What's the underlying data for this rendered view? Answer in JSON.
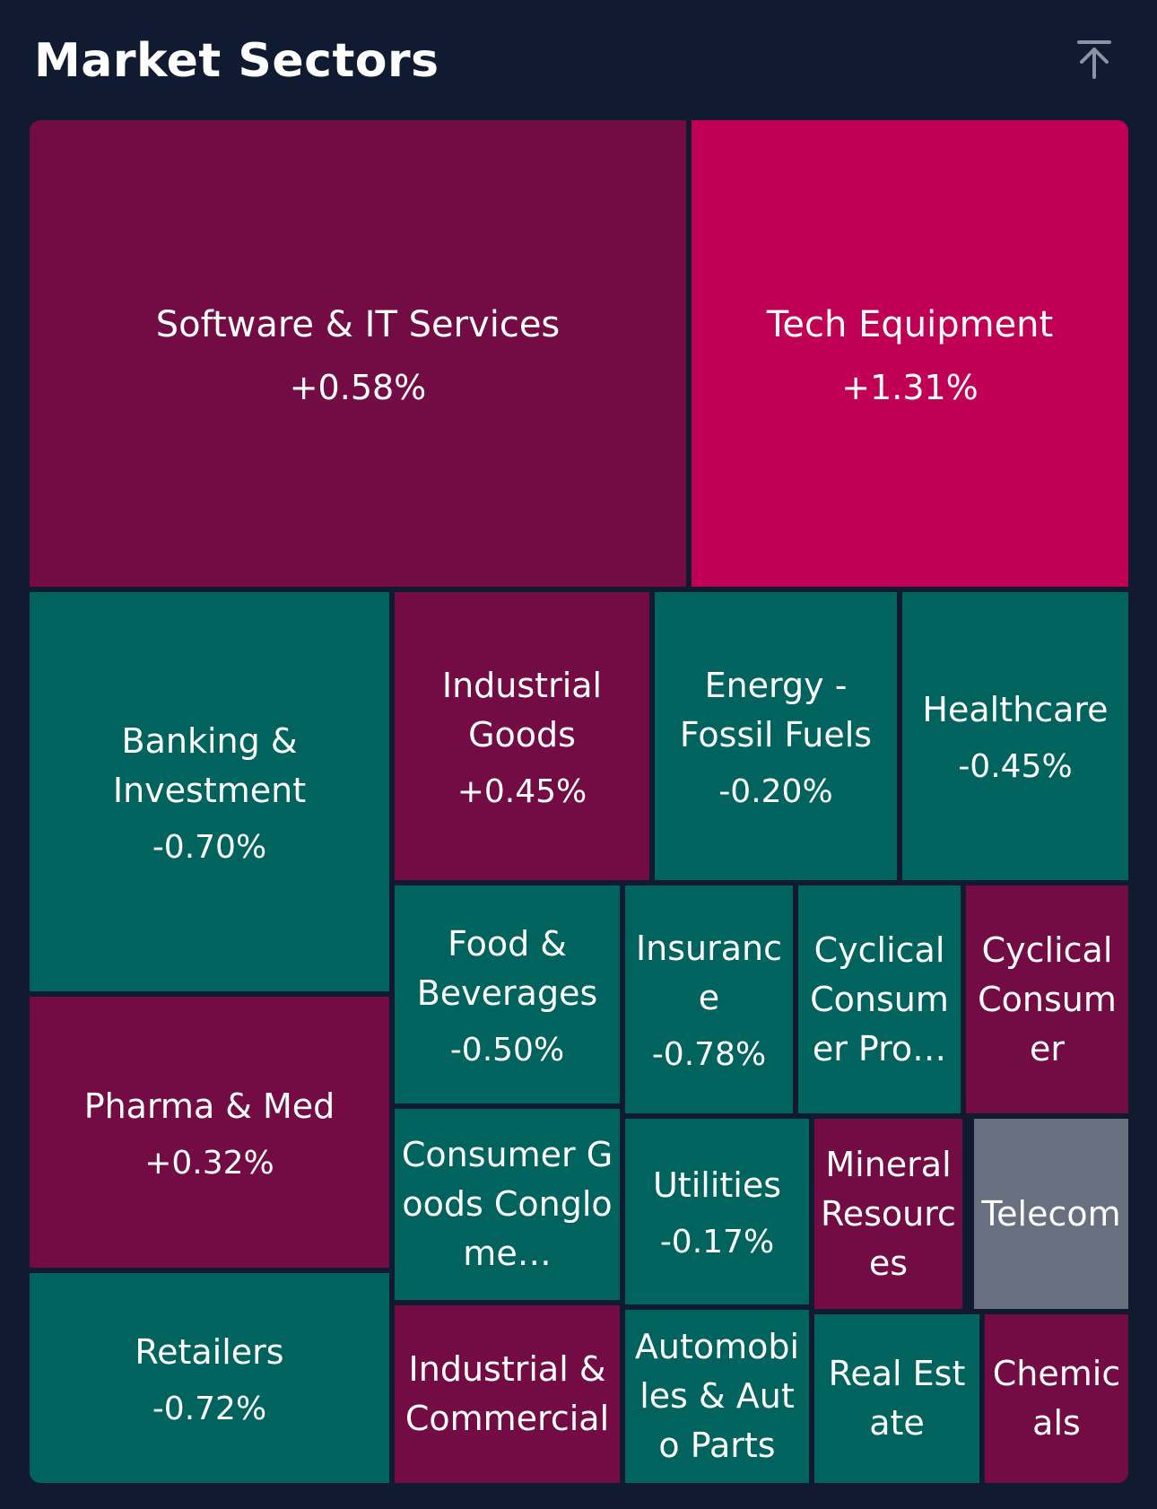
{
  "header": {
    "title": "Market Sectors",
    "collapse_icon": "arrow-up-to-line-icon"
  },
  "colors": {
    "background": "#101a30",
    "strong_up": "#c00055",
    "up": "#730c44",
    "down": "#00635e",
    "neutral": "#687080"
  },
  "sectors": [
    {
      "name": "Software & IT Services",
      "change": "+0.58%",
      "trend": "up"
    },
    {
      "name": "Tech Equipment",
      "change": "+1.31%",
      "trend": "strong_up"
    },
    {
      "name": "Banking & Investment",
      "change": "-0.70%",
      "trend": "down"
    },
    {
      "name": "Industrial Goods",
      "change": "+0.45%",
      "trend": "up"
    },
    {
      "name": "Energy - Fossil Fuels",
      "change": "-0.20%",
      "trend": "down"
    },
    {
      "name": "Healthcare",
      "change": "-0.45%",
      "trend": "down"
    },
    {
      "name": "Food & Beverages",
      "change": "-0.50%",
      "trend": "down"
    },
    {
      "name": "Insurance",
      "change": "-0.78%",
      "trend": "down"
    },
    {
      "name": "Cyclical Consumer Pro…",
      "change": "",
      "trend": "down"
    },
    {
      "name": "Cyclical Consumer",
      "change": "",
      "trend": "up"
    },
    {
      "name": "Pharma & Med",
      "change": "+0.32%",
      "trend": "up"
    },
    {
      "name": "Consumer Goods Conglome…",
      "change": "",
      "trend": "down"
    },
    {
      "name": "Utilities",
      "change": "-0.17%",
      "trend": "down"
    },
    {
      "name": "Mineral Resources",
      "change": "",
      "trend": "up"
    },
    {
      "name": "Telecom",
      "change": "",
      "trend": "neutral"
    },
    {
      "name": "Retailers",
      "change": "-0.72%",
      "trend": "down"
    },
    {
      "name": "Industrial & Commercial",
      "change": "",
      "trend": "up"
    },
    {
      "name": "Automobiles & Auto Parts",
      "change": "",
      "trend": "down"
    },
    {
      "name": "Real Estate",
      "change": "",
      "trend": "down"
    },
    {
      "name": "Chemicals",
      "change": "",
      "trend": "up"
    }
  ]
}
